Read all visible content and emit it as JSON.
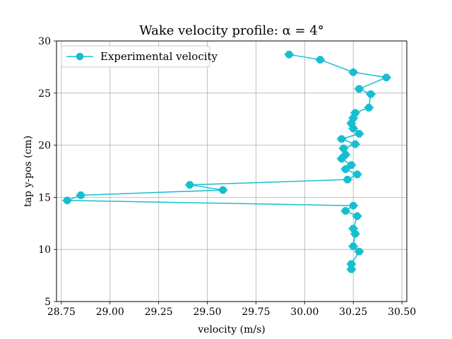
{
  "chart_data": {
    "type": "line",
    "title": "Wake velocity profile: α = 4°",
    "xlabel": "velocity (m/s)",
    "ylabel": "tap y-pos (cm)",
    "xlim": [
      28.725,
      30.525
    ],
    "ylim": [
      5,
      30
    ],
    "xticks": [
      "28.75",
      "29.00",
      "29.25",
      "29.50",
      "29.75",
      "30.00",
      "30.25",
      "30.50"
    ],
    "yticks": [
      "5",
      "10",
      "15",
      "20",
      "25",
      "30"
    ],
    "grid": true,
    "legend_position": "top-left",
    "series": [
      {
        "name": "Experimental velocity",
        "color": "#17becf",
        "marker": "octagon",
        "points": [
          [
            29.92,
            28.7
          ],
          [
            30.08,
            28.2
          ],
          [
            30.25,
            27.0
          ],
          [
            30.42,
            26.5
          ],
          [
            30.28,
            25.4
          ],
          [
            30.34,
            24.9
          ],
          [
            30.33,
            23.6
          ],
          [
            30.26,
            23.1
          ],
          [
            30.25,
            22.6
          ],
          [
            30.24,
            22.1
          ],
          [
            30.25,
            21.6
          ],
          [
            30.28,
            21.1
          ],
          [
            30.19,
            20.6
          ],
          [
            30.26,
            20.1
          ],
          [
            30.2,
            19.7
          ],
          [
            30.21,
            19.1
          ],
          [
            30.19,
            18.7
          ],
          [
            30.24,
            18.1
          ],
          [
            30.21,
            17.7
          ],
          [
            30.27,
            17.2
          ],
          [
            30.22,
            16.7
          ],
          [
            29.41,
            16.2
          ],
          [
            29.58,
            15.7
          ],
          [
            28.85,
            15.2
          ],
          [
            28.78,
            14.7
          ],
          [
            30.25,
            14.2
          ],
          [
            30.21,
            13.7
          ],
          [
            30.27,
            13.2
          ],
          [
            30.25,
            12.0
          ],
          [
            30.26,
            11.5
          ],
          [
            30.25,
            10.3
          ],
          [
            30.28,
            9.8
          ],
          [
            30.24,
            8.6
          ],
          [
            30.24,
            8.1
          ]
        ]
      }
    ]
  }
}
